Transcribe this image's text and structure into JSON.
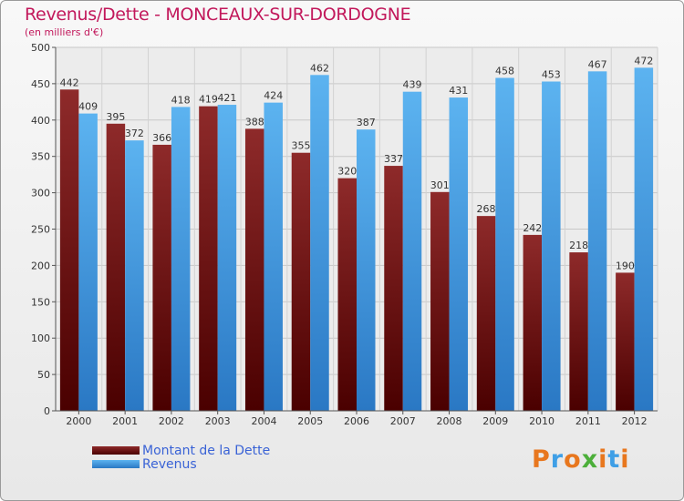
{
  "title": "Revenus/Dette - MONCEAUX-SUR-DORDOGNE",
  "subtitle": "(en milliers d'€)",
  "logo": "Proxiti",
  "chart_data": {
    "type": "bar",
    "categories": [
      "2000",
      "2001",
      "2002",
      "2003",
      "2004",
      "2005",
      "2006",
      "2007",
      "2008",
      "2009",
      "2010",
      "2011",
      "2012"
    ],
    "series": [
      {
        "name": "Montant de la Dette",
        "color": "#7a1616",
        "values": [
          442,
          395,
          366,
          419,
          388,
          355,
          320,
          337,
          301,
          268,
          242,
          218,
          190
        ]
      },
      {
        "name": "Revenus",
        "color": "#3f9fe6",
        "values": [
          409,
          372,
          418,
          421,
          424,
          462,
          387,
          439,
          431,
          458,
          453,
          467,
          472
        ]
      }
    ],
    "ylim": [
      0,
      500
    ],
    "yticks": [
      0,
      50,
      100,
      150,
      200,
      250,
      300,
      350,
      400,
      450,
      500
    ],
    "grid": true,
    "legend": "bottom-left"
  }
}
